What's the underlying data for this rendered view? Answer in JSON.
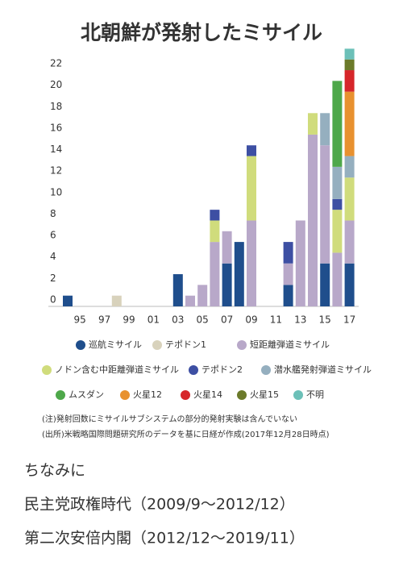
{
  "chart_data": {
    "type": "stacked_bar",
    "title": "北朝鮮が発射したミサイル",
    "categories": [
      null,
      "95",
      null,
      "97",
      null,
      "99",
      null,
      "01",
      null,
      "03",
      null,
      "05",
      null,
      "07",
      null,
      "09",
      null,
      "11",
      null,
      "13",
      null,
      "15",
      null,
      "17"
    ],
    "series": [
      {
        "name": "巡航ミサイル",
        "color": "#1f4e8c",
        "values": [
          1,
          0,
          0,
          0,
          0,
          0,
          0,
          0,
          0,
          3,
          0,
          0,
          0,
          4,
          6,
          0,
          0,
          0,
          2,
          0,
          0,
          4,
          0,
          4
        ]
      },
      {
        "name": "テポドン1",
        "color": "#d8d2bc",
        "values": [
          0,
          0,
          0,
          0,
          1,
          0,
          0,
          0,
          0,
          0,
          0,
          0,
          0,
          0,
          0,
          0,
          0,
          0,
          0,
          0,
          0,
          0,
          0,
          0
        ]
      },
      {
        "name": "短距離弾道ミサイル",
        "color": "#b8a8c9",
        "values": [
          0,
          0,
          0,
          0,
          0,
          0,
          0,
          0,
          0,
          0,
          1,
          2,
          6,
          3,
          0,
          8,
          0,
          0,
          2,
          8,
          16,
          11,
          5,
          4
        ]
      },
      {
        "name": "ノドン含む中距離弾道ミサイル",
        "color": "#d0dc7c",
        "values": [
          0,
          0,
          0,
          0,
          0,
          0,
          0,
          0,
          0,
          0,
          0,
          0,
          2,
          0,
          0,
          6,
          0,
          0,
          0,
          0,
          2,
          0,
          4,
          4
        ]
      },
      {
        "name": "テポドン2",
        "color": "#3d4fa3",
        "values": [
          0,
          0,
          0,
          0,
          0,
          0,
          0,
          0,
          0,
          0,
          0,
          0,
          1,
          0,
          0,
          1,
          0,
          0,
          2,
          0,
          0,
          0,
          1,
          0
        ]
      },
      {
        "name": "潜水艦発射弾道ミサイル",
        "color": "#95afbf",
        "values": [
          0,
          0,
          0,
          0,
          0,
          0,
          0,
          0,
          0,
          0,
          0,
          0,
          0,
          0,
          0,
          0,
          0,
          0,
          0,
          0,
          0,
          3,
          3,
          2
        ]
      },
      {
        "name": "ムスダン",
        "color": "#4ea84a",
        "values": [
          0,
          0,
          0,
          0,
          0,
          0,
          0,
          0,
          0,
          0,
          0,
          0,
          0,
          0,
          0,
          0,
          0,
          0,
          0,
          0,
          0,
          0,
          8,
          0
        ]
      },
      {
        "name": "火星12",
        "color": "#e8912f",
        "values": [
          0,
          0,
          0,
          0,
          0,
          0,
          0,
          0,
          0,
          0,
          0,
          0,
          0,
          0,
          0,
          0,
          0,
          0,
          0,
          0,
          0,
          0,
          0,
          6
        ]
      },
      {
        "name": "火星14",
        "color": "#d6262a",
        "values": [
          0,
          0,
          0,
          0,
          0,
          0,
          0,
          0,
          0,
          0,
          0,
          0,
          0,
          0,
          0,
          0,
          0,
          0,
          0,
          0,
          0,
          0,
          0,
          2
        ]
      },
      {
        "name": "火星15",
        "color": "#6b7a2a",
        "values": [
          0,
          0,
          0,
          0,
          0,
          0,
          0,
          0,
          0,
          0,
          0,
          0,
          0,
          0,
          0,
          0,
          0,
          0,
          0,
          0,
          0,
          0,
          0,
          1
        ]
      },
      {
        "name": "不明",
        "color": "#6cc0b8",
        "values": [
          0,
          0,
          0,
          0,
          0,
          0,
          0,
          0,
          0,
          0,
          0,
          0,
          0,
          0,
          0,
          0,
          0,
          0,
          0,
          0,
          0,
          0,
          0,
          1
        ]
      }
    ],
    "ylim": [
      0,
      24
    ],
    "yticks": [
      0,
      2,
      4,
      6,
      8,
      10,
      12,
      14,
      16,
      18,
      20,
      22
    ],
    "notes": [
      "(注)発射回数にミサイルサブシステムの部分的発射実験は含んでいない",
      "(出所)米戦略国際問題研究所のデータを基に日経が作成(2017年12月28日時点)"
    ]
  },
  "footer_lines": [
    "ちなみに",
    "民主党政権時代（2009/9〜2012/12）",
    "第二次安倍内閣（2012/12〜2019/11）"
  ]
}
